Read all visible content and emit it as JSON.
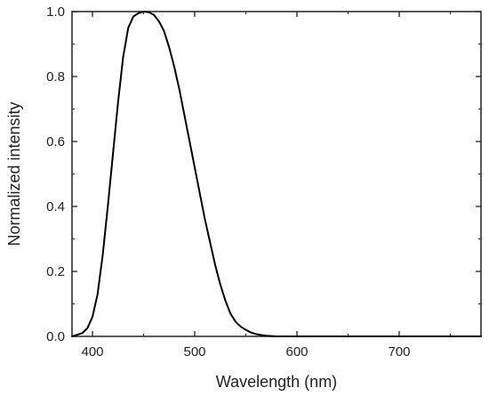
{
  "chart_data": {
    "type": "line",
    "title": "",
    "xlabel": "Wavelength (nm)",
    "ylabel": "Normalized intensity",
    "xlim": [
      380,
      780
    ],
    "ylim": [
      0.0,
      1.0
    ],
    "grid": false,
    "legend": "none",
    "x_ticks": [
      400,
      500,
      600,
      700
    ],
    "x_tick_labels": [
      "400",
      "500",
      "600",
      "700"
    ],
    "y_ticks": [
      0.0,
      0.2,
      0.4,
      0.6,
      0.8,
      1.0
    ],
    "y_tick_labels": [
      "0.0",
      "0.2",
      "0.4",
      "0.6",
      "0.8",
      "1.0"
    ],
    "line_color": "#000000",
    "series": [
      {
        "x": [
          380,
          385,
          390,
          395,
          400,
          405,
          410,
          415,
          420,
          425,
          430,
          435,
          440,
          445,
          450,
          455,
          460,
          465,
          470,
          475,
          480,
          485,
          490,
          495,
          500,
          505,
          510,
          515,
          520,
          525,
          530,
          535,
          540,
          545,
          550,
          555,
          560,
          565,
          570,
          575,
          580,
          590,
          600,
          650,
          700,
          750,
          780
        ],
        "y": [
          0.0,
          0.005,
          0.01,
          0.025,
          0.06,
          0.13,
          0.25,
          0.4,
          0.56,
          0.72,
          0.86,
          0.95,
          0.985,
          0.995,
          1.0,
          0.998,
          0.99,
          0.97,
          0.94,
          0.89,
          0.83,
          0.76,
          0.68,
          0.6,
          0.52,
          0.44,
          0.36,
          0.29,
          0.22,
          0.16,
          0.11,
          0.07,
          0.045,
          0.03,
          0.02,
          0.012,
          0.007,
          0.004,
          0.002,
          0.001,
          0.0,
          0.0,
          0.0,
          0.0,
          0.0,
          0.0,
          0.0
        ]
      }
    ]
  }
}
